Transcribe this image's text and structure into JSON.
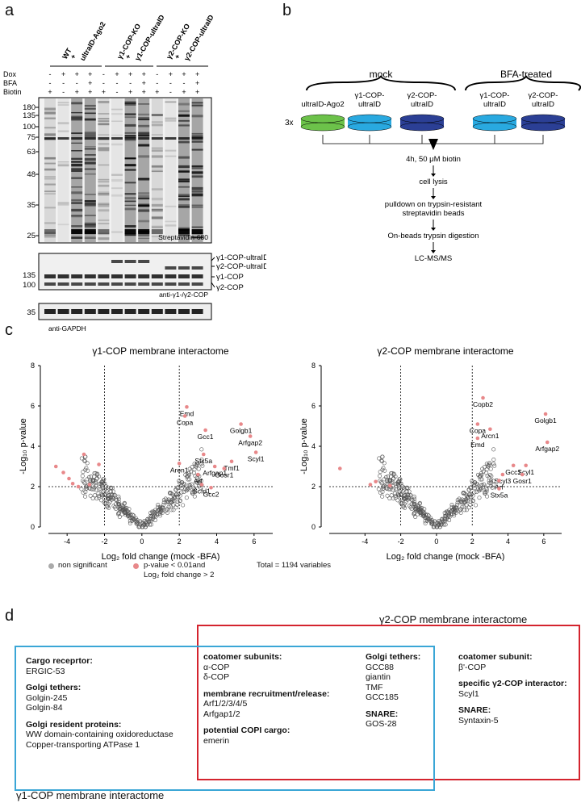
{
  "panels": {
    "a": {
      "letter": "a",
      "groups": [
        {
          "label": "WT\n+\nultraID-Ago2"
        },
        {
          "label": "γ1-COP-KO\n+\nγ1-COP-ultraID"
        },
        {
          "label": "γ2-COP-KO\n+\nγ2-COP-ultraID"
        }
      ],
      "treatments": [
        {
          "name": "Dox",
          "values": [
            "-",
            "+",
            "+",
            "+",
            "-",
            "+",
            "+",
            "+",
            "-",
            "+",
            "+",
            "+"
          ]
        },
        {
          "name": "BFA",
          "values": [
            "-",
            "-",
            "-",
            "+",
            "-",
            "-",
            "-",
            "+",
            "-",
            "-",
            "-",
            "+"
          ]
        },
        {
          "name": "Biotin",
          "values": [
            "+",
            "-",
            "+",
            "+",
            "+",
            "-",
            "+",
            "+",
            "+",
            "-",
            "+",
            "+"
          ]
        }
      ],
      "blot1": {
        "markers": [
          "180",
          "135",
          "100",
          "75",
          "63",
          "48",
          "35",
          "25"
        ],
        "caption": "Streptavidin-680"
      },
      "blot2": {
        "markers": [
          "135",
          "100"
        ],
        "caption": "anti-γ1-/γ2-COP",
        "band_labels": [
          "γ1-COP-ultraID",
          "γ2-COP-ultraID",
          "γ1-COP",
          "γ2-COP"
        ]
      },
      "blot3": {
        "markers": [
          "35"
        ],
        "caption": "anti-GAPDH"
      }
    },
    "b": {
      "letter": "b",
      "mock_label": "mock",
      "bfa_label": "BFA-treated",
      "replicates": "3x",
      "disks": [
        {
          "label": "ultraID-Ago2",
          "color": "#6cc24a"
        },
        {
          "label": "γ1-COP-\nultraID",
          "color": "#29a9e0"
        },
        {
          "label": "γ2-COP-\nultraID",
          "color": "#2b3f95"
        },
        {
          "label": "γ1-COP-\nultraID",
          "color": "#29a9e0"
        },
        {
          "label": "γ2-COP-\nultraID",
          "color": "#2b3f95"
        }
      ],
      "steps": [
        "4h, 50 μM biotin",
        "cell lysis",
        "pulldown on trypsin-resistant\nstreptavidin beads",
        "On-beads trypsin digestion",
        "LC-MS/MS"
      ]
    },
    "c": {
      "letter": "c",
      "legend": {
        "non_sig": "non significant",
        "sig_line1": "p-value < 0.01and",
        "sig_line2": "Log₂ fold change > 2",
        "total": "Total = 1194 variables"
      },
      "colors": {
        "sig": "#e8888a",
        "nonsig": "#555555"
      }
    },
    "d": {
      "letter": "d",
      "g2_title": "γ2-COP membrane interactome",
      "g1_title": "γ1-COP membrane interactome",
      "colors": {
        "g1": "#3aa6d6",
        "g2": "#d4242e"
      },
      "col1": [
        {
          "head": "Cargo receprtor:",
          "items": [
            "ERGIC-53"
          ]
        },
        {
          "head": "Golgi tethers:",
          "items": [
            "Golgin-245",
            "Golgin-84"
          ]
        },
        {
          "head": "Golgi resident proteins:",
          "items": [
            "WW domain-containing oxidoreductase",
            "Copper-transporting ATPase 1"
          ]
        }
      ],
      "col2": [
        {
          "head": "coatomer subunits:",
          "items": [
            "α-COP",
            "δ-COP"
          ]
        },
        {
          "head": "membrane recruitment/release:",
          "items": [
            "Arf1/2/3/4/5",
            "Arfgap1/2"
          ]
        },
        {
          "head": "potential COPI cargo:",
          "items": [
            "emerin"
          ]
        }
      ],
      "col3": [
        {
          "head": "Golgi tethers:",
          "items": [
            "GCC88",
            "giantin",
            "TMF",
            "GCC185"
          ]
        },
        {
          "head": "SNARE:",
          "items": [
            "GOS-28"
          ]
        }
      ],
      "col4": [
        {
          "head": "coatomer subunit:",
          "items": [
            "β'-COP"
          ]
        },
        {
          "head": "specific γ2-COP interactor:",
          "items": [
            "Scyl1"
          ]
        },
        {
          "head": "SNARE:",
          "items": [
            "Syntaxin-5"
          ]
        }
      ]
    }
  },
  "chart_data": [
    {
      "type": "scatter",
      "title": "γ1-COP membrane interactome",
      "xlabel": "Log₂ fold change (mock -BFA)",
      "ylabel": "-Log₁₀ p-value",
      "xlim": [
        -5,
        7
      ],
      "ylim": [
        0,
        8
      ],
      "xticks": [
        -4,
        -2,
        0,
        2,
        4,
        6
      ],
      "yticks": [
        0,
        2,
        4,
        6,
        8
      ],
      "thresholds": {
        "x": [
          -2,
          2
        ],
        "y": 2
      },
      "labeled_points": [
        {
          "label": "Emd",
          "x": 2.4,
          "y": 5.95
        },
        {
          "label": "Copa",
          "x": 2.3,
          "y": 5.5
        },
        {
          "label": "Gcc1",
          "x": 3.4,
          "y": 4.8
        },
        {
          "label": "Golgb1",
          "x": 5.3,
          "y": 5.1
        },
        {
          "label": "Arfgap2",
          "x": 5.8,
          "y": 4.5
        },
        {
          "label": "Scyl1",
          "x": 6.1,
          "y": 3.7
        },
        {
          "label": "Stx5a",
          "x": 3.3,
          "y": 3.6
        },
        {
          "label": "Arfgap1",
          "x": 3.9,
          "y": 3.0
        },
        {
          "label": "Tmf1",
          "x": 4.8,
          "y": 3.25
        },
        {
          "label": "Aren1",
          "x": 2.0,
          "y": 3.15
        },
        {
          "label": "Gosr1",
          "x": 4.4,
          "y": 2.9
        },
        {
          "label": "Arf",
          "x": 3.0,
          "y": 2.6
        },
        {
          "label": "Scfd1",
          "x": 3.2,
          "y": 2.1
        },
        {
          "label": "Gcc2",
          "x": 3.7,
          "y": 1.95
        }
      ],
      "other_significant": [
        {
          "x": -4.6,
          "y": 3.0
        },
        {
          "x": -4.2,
          "y": 2.7
        },
        {
          "x": -3.9,
          "y": 2.4
        },
        {
          "x": -3.7,
          "y": 2.15
        },
        {
          "x": -3.4,
          "y": 2.0
        },
        {
          "x": -3.1,
          "y": 3.6
        },
        {
          "x": -2.8,
          "y": 2.1
        },
        {
          "x": -2.3,
          "y": 3.1
        }
      ]
    },
    {
      "type": "scatter",
      "title": "γ2-COP membrane interactome",
      "xlabel": "Log₂ fold change (mock -BFA)",
      "ylabel": "-Log₁₀ p-value",
      "xlim": [
        -6,
        7
      ],
      "ylim": [
        0,
        8
      ],
      "xticks": [
        -4,
        -2,
        0,
        2,
        4,
        6
      ],
      "yticks": [
        0,
        2,
        4,
        6,
        8
      ],
      "thresholds": {
        "x": [
          -2,
          2
        ],
        "y": 2
      },
      "labeled_points": [
        {
          "label": "Copb2",
          "x": 2.6,
          "y": 6.4
        },
        {
          "label": "Copa",
          "x": 2.3,
          "y": 5.1
        },
        {
          "label": "Arcn1",
          "x": 3.0,
          "y": 4.85
        },
        {
          "label": "Emd",
          "x": 2.3,
          "y": 4.4
        },
        {
          "label": "Golgb1",
          "x": 6.1,
          "y": 5.6
        },
        {
          "label": "Arfgap2",
          "x": 6.2,
          "y": 4.2
        },
        {
          "label": "Gcc1",
          "x": 4.3,
          "y": 3.05
        },
        {
          "label": "Scyl3",
          "x": 3.7,
          "y": 2.6
        },
        {
          "label": "Scyl1",
          "x": 5.0,
          "y": 3.05
        },
        {
          "label": "Gosr1",
          "x": 4.8,
          "y": 2.6
        },
        {
          "label": "Arf",
          "x": 3.5,
          "y": 2.3
        },
        {
          "label": "Stx5a",
          "x": 3.5,
          "y": 1.9
        }
      ],
      "other_significant": [
        {
          "x": -5.4,
          "y": 2.9
        },
        {
          "x": -3.7,
          "y": 2.1
        },
        {
          "x": -3.4,
          "y": 2.25
        },
        {
          "x": -2.6,
          "y": 2.05
        }
      ]
    }
  ]
}
